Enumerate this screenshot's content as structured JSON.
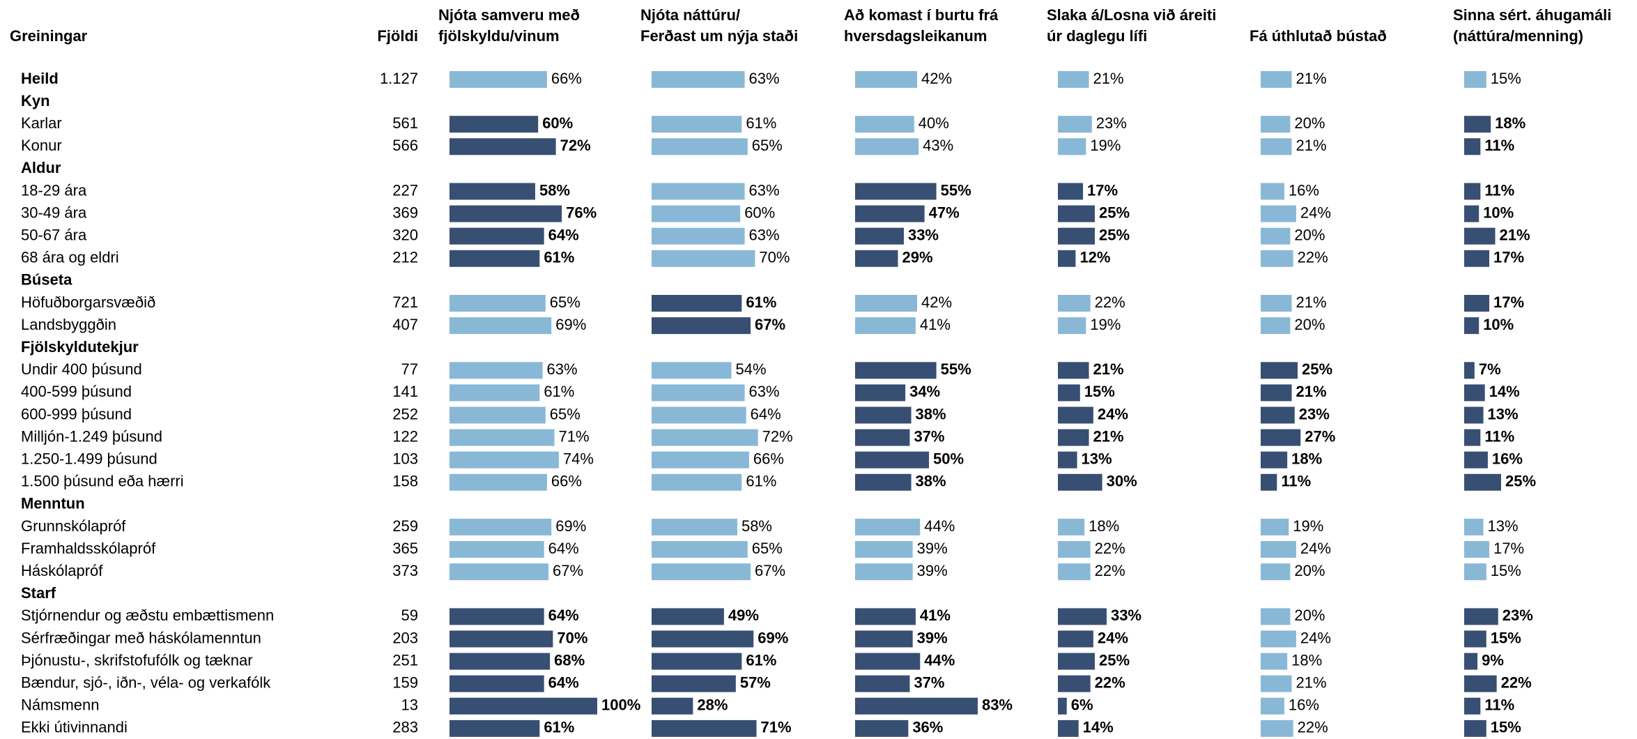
{
  "table": {
    "header": {
      "label": "Greiningar",
      "count": "Fjöldi"
    },
    "colors": {
      "highlight": "#374f72",
      "normal": "#89b8d6"
    },
    "columns": [
      {
        "lines": [
          "Njóta samveru með",
          "fjölskyldu/vinum"
        ]
      },
      {
        "lines": [
          "Njóta náttúru/",
          "Ferðast um nýja staði"
        ]
      },
      {
        "lines": [
          "Að komast í burtu frá",
          "hversdagsleikanum"
        ]
      },
      {
        "lines": [
          "Slaka á/Losna við áreiti",
          "úr daglegu lífi"
        ]
      },
      {
        "lines": [
          "Fá úthlutað bústað"
        ]
      },
      {
        "lines": [
          "Sinna sért. áhugamáli",
          "(náttúra/menning)"
        ]
      }
    ],
    "rows": [
      {
        "kind": "total",
        "label": "Heild",
        "count": "1.127",
        "values": [
          66,
          63,
          42,
          21,
          21,
          15
        ],
        "value_labels": [
          "66%",
          "63%",
          "42%",
          "21%",
          "21%",
          "15%"
        ],
        "highlight": [
          false,
          false,
          false,
          false,
          false,
          false
        ]
      },
      {
        "kind": "group",
        "label": "Kyn"
      },
      {
        "kind": "item",
        "label": "Karlar",
        "count": "561",
        "values": [
          60,
          61,
          40,
          23,
          20,
          18
        ],
        "value_labels": [
          "60%",
          "61%",
          "40%",
          "23%",
          "20%",
          "18%"
        ],
        "highlight": [
          true,
          false,
          false,
          false,
          false,
          true
        ]
      },
      {
        "kind": "item",
        "label": "Konur",
        "count": "566",
        "values": [
          72,
          65,
          43,
          19,
          21,
          11
        ],
        "value_labels": [
          "72%",
          "65%",
          "43%",
          "19%",
          "21%",
          "11%"
        ],
        "highlight": [
          true,
          false,
          false,
          false,
          false,
          true
        ]
      },
      {
        "kind": "group",
        "label": "Aldur"
      },
      {
        "kind": "item",
        "label": "18-29 ára",
        "count": "227",
        "values": [
          58,
          63,
          55,
          17,
          16,
          11
        ],
        "value_labels": [
          "58%",
          "63%",
          "55%",
          "17%",
          "16%",
          "11%"
        ],
        "highlight": [
          true,
          false,
          true,
          true,
          false,
          true
        ]
      },
      {
        "kind": "item",
        "label": "30-49 ára",
        "count": "369",
        "values": [
          76,
          60,
          47,
          25,
          24,
          10
        ],
        "value_labels": [
          "76%",
          "60%",
          "47%",
          "25%",
          "24%",
          "10%"
        ],
        "highlight": [
          true,
          false,
          true,
          true,
          false,
          true
        ]
      },
      {
        "kind": "item",
        "label": "50-67 ára",
        "count": "320",
        "values": [
          64,
          63,
          33,
          25,
          20,
          21
        ],
        "value_labels": [
          "64%",
          "63%",
          "33%",
          "25%",
          "20%",
          "21%"
        ],
        "highlight": [
          true,
          false,
          true,
          true,
          false,
          true
        ]
      },
      {
        "kind": "item",
        "label": "68 ára og eldri",
        "count": "212",
        "values": [
          61,
          70,
          29,
          12,
          22,
          17
        ],
        "value_labels": [
          "61%",
          "70%",
          "29%",
          "12%",
          "22%",
          "17%"
        ],
        "highlight": [
          true,
          false,
          true,
          true,
          false,
          true
        ]
      },
      {
        "kind": "group",
        "label": "Búseta"
      },
      {
        "kind": "item",
        "label": "Höfuðborgarsvæðið",
        "count": "721",
        "values": [
          65,
          61,
          42,
          22,
          21,
          17
        ],
        "value_labels": [
          "65%",
          "61%",
          "42%",
          "22%",
          "21%",
          "17%"
        ],
        "highlight": [
          false,
          true,
          false,
          false,
          false,
          true
        ]
      },
      {
        "kind": "item",
        "label": "Landsbyggðin",
        "count": "407",
        "values": [
          69,
          67,
          41,
          19,
          20,
          10
        ],
        "value_labels": [
          "69%",
          "67%",
          "41%",
          "19%",
          "20%",
          "10%"
        ],
        "highlight": [
          false,
          true,
          false,
          false,
          false,
          true
        ]
      },
      {
        "kind": "group",
        "label": "Fjölskyldutekjur"
      },
      {
        "kind": "item",
        "label": "Undir 400 þúsund",
        "count": "77",
        "values": [
          63,
          54,
          55,
          21,
          25,
          7
        ],
        "value_labels": [
          "63%",
          "54%",
          "55%",
          "21%",
          "25%",
          "7%"
        ],
        "highlight": [
          false,
          false,
          true,
          true,
          true,
          true
        ]
      },
      {
        "kind": "item",
        "label": "400-599 þúsund",
        "count": "141",
        "values": [
          61,
          63,
          34,
          15,
          21,
          14
        ],
        "value_labels": [
          "61%",
          "63%",
          "34%",
          "15%",
          "21%",
          "14%"
        ],
        "highlight": [
          false,
          false,
          true,
          true,
          true,
          true
        ]
      },
      {
        "kind": "item",
        "label": "600-999 þúsund",
        "count": "252",
        "values": [
          65,
          64,
          38,
          24,
          23,
          13
        ],
        "value_labels": [
          "65%",
          "64%",
          "38%",
          "24%",
          "23%",
          "13%"
        ],
        "highlight": [
          false,
          false,
          true,
          true,
          true,
          true
        ]
      },
      {
        "kind": "item",
        "label": "Milljón-1.249 þúsund",
        "count": "122",
        "values": [
          71,
          72,
          37,
          21,
          27,
          11
        ],
        "value_labels": [
          "71%",
          "72%",
          "37%",
          "21%",
          "27%",
          "11%"
        ],
        "highlight": [
          false,
          false,
          true,
          true,
          true,
          true
        ]
      },
      {
        "kind": "item",
        "label": "1.250-1.499 þúsund",
        "count": "103",
        "values": [
          74,
          66,
          50,
          13,
          18,
          16
        ],
        "value_labels": [
          "74%",
          "66%",
          "50%",
          "13%",
          "18%",
          "16%"
        ],
        "highlight": [
          false,
          false,
          true,
          true,
          true,
          true
        ]
      },
      {
        "kind": "item",
        "label": "1.500 þúsund eða hærri",
        "count": "158",
        "values": [
          66,
          61,
          38,
          30,
          11,
          25
        ],
        "value_labels": [
          "66%",
          "61%",
          "38%",
          "30%",
          "11%",
          "25%"
        ],
        "highlight": [
          false,
          false,
          true,
          true,
          true,
          true
        ]
      },
      {
        "kind": "group",
        "label": "Menntun"
      },
      {
        "kind": "item",
        "label": "Grunnskólapróf",
        "count": "259",
        "values": [
          69,
          58,
          44,
          18,
          19,
          13
        ],
        "value_labels": [
          "69%",
          "58%",
          "44%",
          "18%",
          "19%",
          "13%"
        ],
        "highlight": [
          false,
          false,
          false,
          false,
          false,
          false
        ]
      },
      {
        "kind": "item",
        "label": "Framhaldsskólapróf",
        "count": "365",
        "values": [
          64,
          65,
          39,
          22,
          24,
          17
        ],
        "value_labels": [
          "64%",
          "65%",
          "39%",
          "22%",
          "24%",
          "17%"
        ],
        "highlight": [
          false,
          false,
          false,
          false,
          false,
          false
        ]
      },
      {
        "kind": "item",
        "label": "Háskólapróf",
        "count": "373",
        "values": [
          67,
          67,
          39,
          22,
          20,
          15
        ],
        "value_labels": [
          "67%",
          "67%",
          "39%",
          "22%",
          "20%",
          "15%"
        ],
        "highlight": [
          false,
          false,
          false,
          false,
          false,
          false
        ]
      },
      {
        "kind": "group",
        "label": "Starf"
      },
      {
        "kind": "item",
        "label": "Stjórnendur og æðstu embættismenn",
        "count": "59",
        "values": [
          64,
          49,
          41,
          33,
          20,
          23
        ],
        "value_labels": [
          "64%",
          "49%",
          "41%",
          "33%",
          "20%",
          "23%"
        ],
        "highlight": [
          true,
          true,
          true,
          true,
          false,
          true
        ]
      },
      {
        "kind": "item",
        "label": "Sérfræðingar með háskólamenntun",
        "count": "203",
        "values": [
          70,
          69,
          39,
          24,
          24,
          15
        ],
        "value_labels": [
          "70%",
          "69%",
          "39%",
          "24%",
          "24%",
          "15%"
        ],
        "highlight": [
          true,
          true,
          true,
          true,
          false,
          true
        ]
      },
      {
        "kind": "item",
        "label": "Þjónustu-, skrifstofufólk og tæknar",
        "count": "251",
        "values": [
          68,
          61,
          44,
          25,
          18,
          9
        ],
        "value_labels": [
          "68%",
          "61%",
          "44%",
          "25%",
          "18%",
          "9%"
        ],
        "highlight": [
          true,
          true,
          true,
          true,
          false,
          true
        ]
      },
      {
        "kind": "item",
        "label": "Bændur, sjó-, iðn-, véla- og verkafólk",
        "count": "159",
        "values": [
          64,
          57,
          37,
          22,
          21,
          22
        ],
        "value_labels": [
          "64%",
          "57%",
          "37%",
          "22%",
          "21%",
          "22%"
        ],
        "highlight": [
          true,
          true,
          true,
          true,
          false,
          true
        ]
      },
      {
        "kind": "item",
        "label": "Námsmenn",
        "count": "13",
        "values": [
          100,
          28,
          83,
          6,
          16,
          11
        ],
        "value_labels": [
          "100%",
          "28%",
          "83%",
          "6%",
          "16%",
          "11%"
        ],
        "highlight": [
          true,
          true,
          true,
          true,
          false,
          true
        ]
      },
      {
        "kind": "item",
        "label": "Ekki útivinnandi",
        "count": "283",
        "values": [
          61,
          71,
          36,
          14,
          22,
          15
        ],
        "value_labels": [
          "61%",
          "71%",
          "36%",
          "14%",
          "22%",
          "15%"
        ],
        "highlight": [
          true,
          true,
          true,
          true,
          false,
          true
        ]
      }
    ]
  }
}
